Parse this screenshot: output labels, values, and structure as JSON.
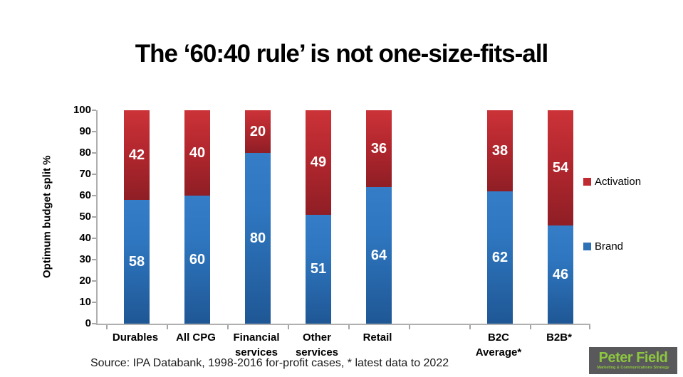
{
  "title": "The ‘60:40 rule’ is not one-size-fits-all",
  "chart_data": {
    "type": "bar",
    "stacked": true,
    "title": "The ‘60:40 rule’ is not one-size-fits-all",
    "xlabel": "",
    "ylabel": "Optimum budget split %",
    "ylim": [
      0,
      100
    ],
    "ytick_step": 10,
    "yticks": [
      0,
      10,
      20,
      30,
      40,
      50,
      60,
      70,
      80,
      90,
      100
    ],
    "grid": false,
    "legend_position": "right",
    "categories": [
      "Durables",
      "All CPG",
      "Financial services",
      "Other services",
      "Retail",
      "",
      "B2C Average*",
      "B2B*"
    ],
    "category_lines": [
      [
        "Durables"
      ],
      [
        "All CPG"
      ],
      [
        "Financial",
        "services"
      ],
      [
        "Other",
        "services"
      ],
      [
        "Retail"
      ],
      [],
      [
        "B2C",
        "Average*"
      ],
      [
        "B2B*"
      ]
    ],
    "series": [
      {
        "name": "Brand",
        "color": "#2d72b7",
        "values": [
          58,
          60,
          80,
          51,
          64,
          null,
          62,
          46
        ]
      },
      {
        "name": "Activation",
        "color": "#c02a31",
        "values": [
          42,
          40,
          20,
          49,
          36,
          null,
          38,
          54
        ]
      }
    ]
  },
  "source_note": "Source: IPA Databank, 1998-2016 for-profit cases, * latest data to 2022",
  "logo": {
    "name": "Peter Field",
    "tagline": "Marketing & Communications Strategy",
    "bg_color": "#59595c",
    "text_color": "#8dc63f"
  },
  "colors": {
    "brand_bar_top": "#357dc7",
    "brand_bar_bottom": "#1f5795",
    "activation_bar_top": "#cb3338",
    "activation_bar_bottom": "#8f1e25",
    "axis": "#b0b0b0",
    "title_text": "#000000"
  }
}
